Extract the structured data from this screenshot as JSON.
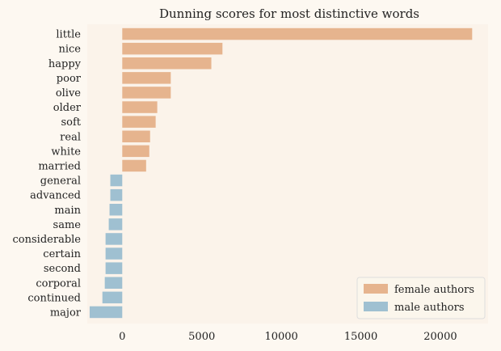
{
  "chart_data": {
    "type": "bar",
    "orientation": "horizontal",
    "title": "Dunning scores for most distinctive words",
    "xlabel": "",
    "ylabel": "",
    "xlim": [
      -2200,
      23000
    ],
    "xticks": [
      0,
      5000,
      10000,
      15000,
      20000
    ],
    "grid": false,
    "legend_position": "bottom-right",
    "categories": [
      "little",
      "nice",
      "happy",
      "poor",
      "olive",
      "older",
      "soft",
      "real",
      "white",
      "married",
      "general",
      "advanced",
      "main",
      "same",
      "considerable",
      "certain",
      "second",
      "corporal",
      "continued",
      "major"
    ],
    "values": [
      22000,
      6300,
      5600,
      3050,
      3050,
      2200,
      2100,
      1750,
      1700,
      1500,
      -750,
      -750,
      -800,
      -850,
      -1050,
      -1050,
      -1050,
      -1100,
      -1250,
      -2050
    ],
    "series": [
      {
        "name": "female authors",
        "color": "#e6b48e"
      },
      {
        "name": "male authors",
        "color": "#9fc0d1"
      }
    ]
  }
}
